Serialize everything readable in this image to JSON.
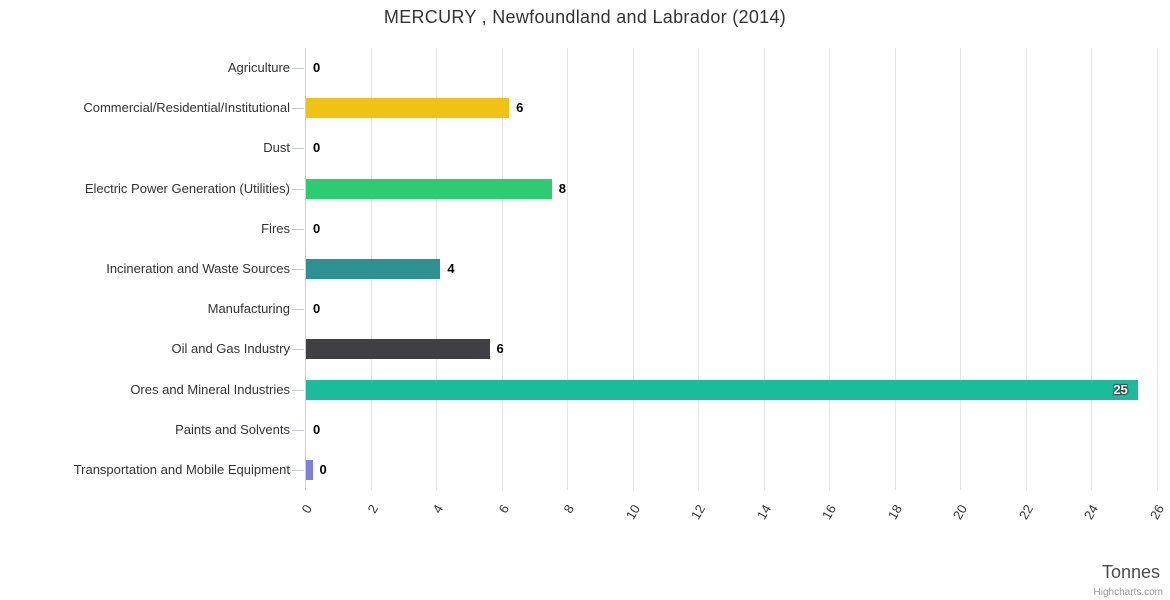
{
  "title": "MERCURY , Newfoundland and Labrador (2014)",
  "credits_label": "Highcharts.com",
  "chart_data": {
    "type": "bar",
    "orientation": "horizontal",
    "title": "MERCURY , Newfoundland and Labrador (2014)",
    "xlabel": "Tonnes",
    "ylabel": "",
    "xlim": [
      0,
      26
    ],
    "x_ticks": [
      0,
      2,
      4,
      6,
      8,
      10,
      12,
      14,
      16,
      18,
      20,
      22,
      24,
      26
    ],
    "grid": true,
    "legend": "none",
    "categories": [
      "Agriculture",
      "Commercial/Residential/Institutional",
      "Dust",
      "Electric Power Generation (Utilities)",
      "Fires",
      "Incineration and Waste Sources",
      "Manufacturing",
      "Oil and Gas Industry",
      "Ores and Mineral Industries",
      "Paints and Solvents",
      "Transportation and Mobile Equipment"
    ],
    "values": [
      0,
      6.2,
      0,
      7.5,
      0,
      4.1,
      0,
      5.6,
      25.4,
      0,
      0.2
    ],
    "labels": [
      "0",
      "6",
      "0",
      "8",
      "0",
      "4",
      "0",
      "6",
      "25",
      "0",
      "0"
    ],
    "label_inside": [
      false,
      false,
      false,
      false,
      false,
      false,
      false,
      false,
      true,
      false,
      false
    ],
    "colors": [
      "#cccccc",
      "#f0c214",
      "#cccccc",
      "#2ecc71",
      "#cccccc",
      "#2d9191",
      "#cccccc",
      "#404044",
      "#1abc9c",
      "#cccccc",
      "#7d80e2"
    ],
    "axis_color": "#c8cdd8",
    "grid_color": "#e6e6e6",
    "tick_color": "#c6cbd1",
    "label_color": "#333333",
    "value_label_color": "#000000"
  }
}
